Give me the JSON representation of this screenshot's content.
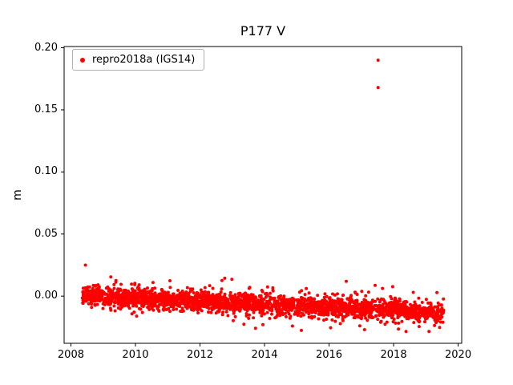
{
  "figure": {
    "background": "#ffffff",
    "frame_color": "#000000"
  },
  "chart_data": {
    "type": "scatter",
    "title": "P177 V",
    "xlabel": "",
    "ylabel": "m",
    "xlim": [
      2007.79,
      2020.11
    ],
    "ylim": [
      -0.038,
      0.201
    ],
    "xticks": [
      2008,
      2010,
      2012,
      2014,
      2016,
      2018,
      2020
    ],
    "yticks": [
      0.0,
      0.05,
      0.1,
      0.15,
      0.2
    ],
    "ytick_decimals": 2,
    "grid": false,
    "legend": {
      "label": "repro2018a (IGS14)",
      "location": "upper left"
    },
    "series": [
      {
        "name": "repro2018a (IGS14)",
        "color": "#ff0000",
        "marker": "circle",
        "marker_radius_px": 2,
        "band": {
          "x_start": 2008.35,
          "x_end": 2019.55,
          "trend_y_start": 0.0005,
          "trend_y_end": -0.0135,
          "noise_sd": 0.004,
          "wide_noise_sd": 0.0085,
          "wide_fraction": 0.08,
          "y_clip_min": -0.0285,
          "y_clip_max": 0.024,
          "n_points": 2600,
          "seed": 20180101
        },
        "outliers": [
          [
            2017.52,
            0.19
          ],
          [
            2017.52,
            0.168
          ],
          [
            2008.45,
            0.025
          ],
          [
            2012.68,
            0.0125
          ],
          [
            2013.95,
            -0.023
          ],
          [
            2016.05,
            -0.0255
          ],
          [
            2017.1,
            -0.027
          ],
          [
            2018.15,
            -0.0265
          ]
        ]
      }
    ]
  }
}
